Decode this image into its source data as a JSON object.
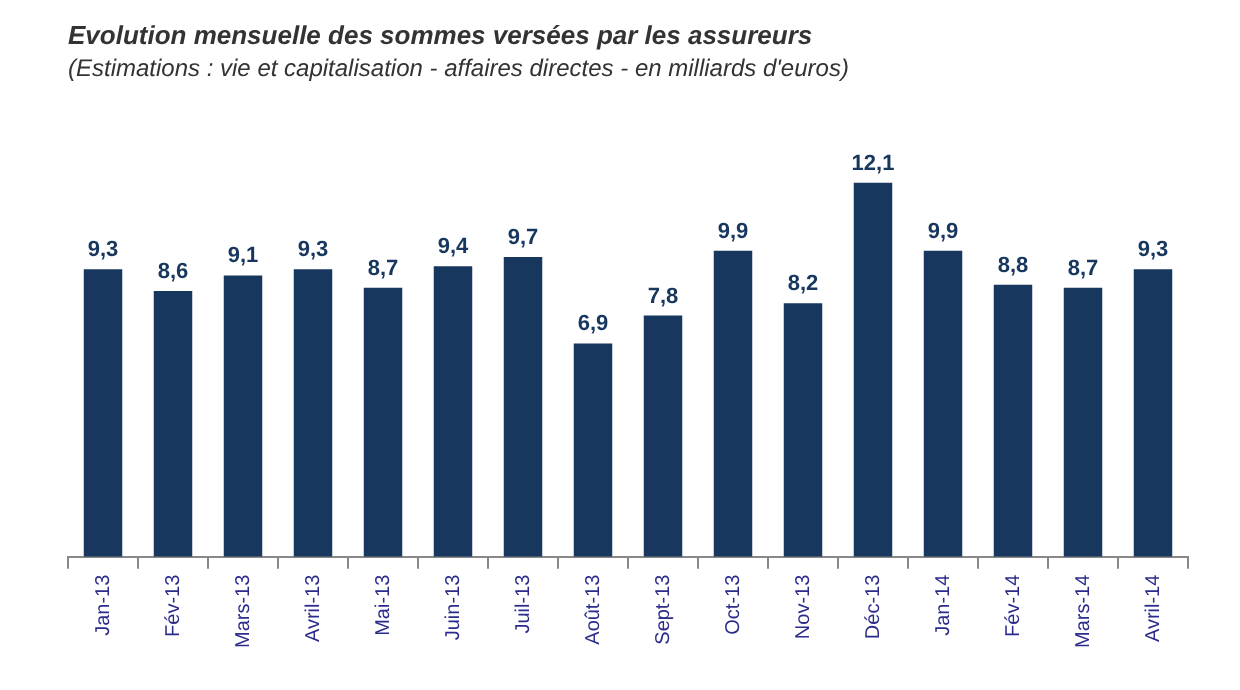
{
  "chart_data": {
    "type": "bar",
    "title": "Evolution mensuelle des sommes versées par les assureurs",
    "subtitle": "(Estimations : vie et capitalisation - affaires directes - en milliards d'euros)",
    "categories": [
      "Jan-13",
      "Fév-13",
      "Mars-13",
      "Avril-13",
      "Mai-13",
      "Juin-13",
      "Juil-13",
      "Août-13",
      "Sept-13",
      "Oct-13",
      "Nov-13",
      "Déc-13",
      "Jan-14",
      "Fév-14",
      "Mars-14",
      "Avril-14"
    ],
    "values": [
      9.3,
      8.6,
      9.1,
      9.3,
      8.7,
      9.4,
      9.7,
      6.9,
      7.8,
      9.9,
      8.2,
      12.1,
      9.9,
      8.8,
      8.7,
      9.3
    ],
    "value_labels": [
      "9,3",
      "8,6",
      "9,1",
      "9,3",
      "8,7",
      "9,4",
      "9,7",
      "6,9",
      "7,8",
      "9,9",
      "8,2",
      "12,1",
      "9,9",
      "8,8",
      "8,7",
      "9,3"
    ],
    "color": "#17375e",
    "grid": false,
    "legend": false
  }
}
